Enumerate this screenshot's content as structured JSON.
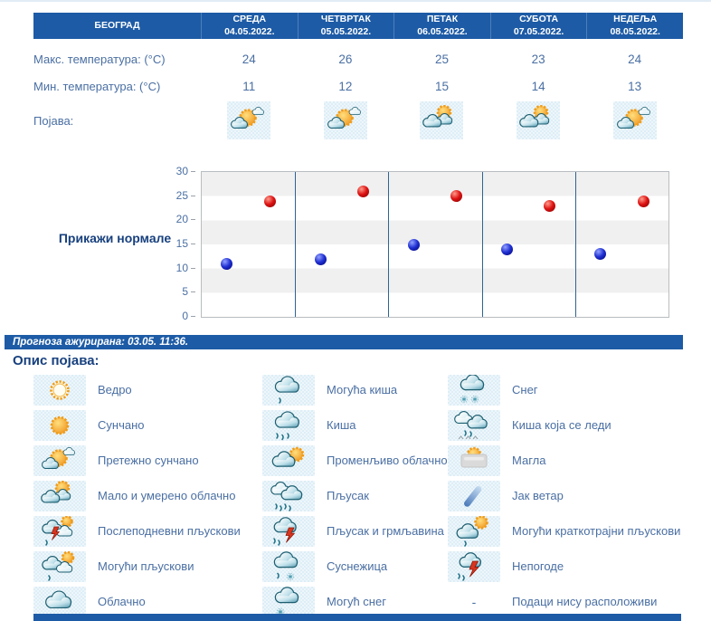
{
  "colors": {
    "header_bg": "#1d5ba6",
    "heading_text": "#17407e",
    "body_text": "#4a6fa3",
    "max_point": "#dd1212",
    "min_point": "#1f2fd2",
    "band_gray": "#f0f0f0"
  },
  "location": "БЕОГРАД",
  "days": [
    {
      "name": "СРЕДА",
      "date": "04.05.2022."
    },
    {
      "name": "ЧЕТВРТАК",
      "date": "05.05.2022."
    },
    {
      "name": "ПЕТАК",
      "date": "06.05.2022."
    },
    {
      "name": "СУБОТА",
      "date": "07.05.2022."
    },
    {
      "name": "НЕДЕЉА",
      "date": "08.05.2022."
    }
  ],
  "rows": {
    "max_label": "Макс. температура: (°C)",
    "min_label": "Мин. температура: (°C)",
    "phenomenon_label": "Појава:"
  },
  "max_values": [
    24,
    26,
    25,
    23,
    24
  ],
  "min_values": [
    11,
    12,
    15,
    14,
    13
  ],
  "phenomenon_icons": [
    "mostly-sunny",
    "mostly-sunny",
    "partly-cloudy",
    "partly-cloudy",
    "mostly-sunny"
  ],
  "normals_button": "Прикажи нормале",
  "chart_data": {
    "type": "scatter",
    "categories": [
      "04.05.2022.",
      "05.05.2022.",
      "06.05.2022.",
      "07.05.2022.",
      "08.05.2022."
    ],
    "series": [
      {
        "name": "Макс. температура (°C)",
        "color": "#dd1212",
        "values": [
          24,
          26,
          25,
          23,
          24
        ]
      },
      {
        "name": "Мин. температура (°C)",
        "color": "#1f2fd2",
        "values": [
          11,
          12,
          15,
          14,
          13
        ]
      }
    ],
    "ylim": [
      0,
      30
    ],
    "yticks": [
      0,
      5,
      10,
      15,
      20,
      25,
      30
    ],
    "grid": "horizontal-bands",
    "legend_position": "none"
  },
  "status_bar": "Прогноза ажурирана:  03.05. 11:36.",
  "legend": {
    "title": "Опис појава:",
    "columns": [
      [
        {
          "icon": "clear",
          "label": "Ведро"
        },
        {
          "icon": "sunny",
          "label": "Сунчано"
        },
        {
          "icon": "mostly-sunny",
          "label": "Претежно сунчано"
        },
        {
          "icon": "partly-cloudy",
          "label": "Мало и умерено облачно"
        },
        {
          "icon": "afternoon-showers",
          "label": "Послеподневни пљускови"
        },
        {
          "icon": "possible-showers",
          "label": "Могући пљускови"
        },
        {
          "icon": "cloudy",
          "label": "Облачно"
        }
      ],
      [
        {
          "icon": "possible-rain",
          "label": "Могућа киша"
        },
        {
          "icon": "rain",
          "label": "Киша"
        },
        {
          "icon": "variable-cloudy",
          "label": "Променљиво облачно"
        },
        {
          "icon": "downpour",
          "label": "Пљусак"
        },
        {
          "icon": "downpour-thunder",
          "label": "Пљусак и грмљавина"
        },
        {
          "icon": "sleet",
          "label": "Суснежица"
        },
        {
          "icon": "possible-snow",
          "label": "Могућ снег"
        }
      ],
      [
        {
          "icon": "snow",
          "label": "Снег"
        },
        {
          "icon": "freezing-rain",
          "label": "Киша која се леди"
        },
        {
          "icon": "fog",
          "label": "Магла"
        },
        {
          "icon": "strong-wind",
          "label": "Јак ветар"
        },
        {
          "icon": "possible-brief-showers",
          "label": "Могући краткотрајни пљускови"
        },
        {
          "icon": "storms",
          "label": "Непогоде"
        },
        {
          "icon": "no-data",
          "label": "Подаци нису расположиви",
          "no_icon_text": "-"
        }
      ]
    ]
  }
}
